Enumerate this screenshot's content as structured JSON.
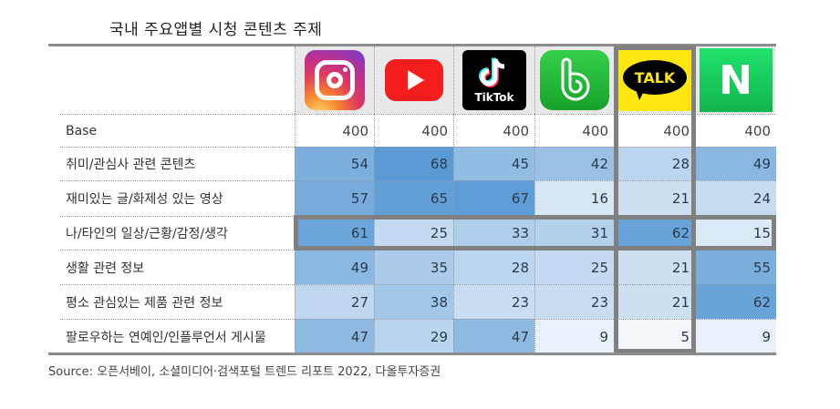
{
  "title": "국내 주요앱별 시청 콘텐츠 주제",
  "source": "Source: 오픈서베이, 소셜미디어·검색포털 트렌드 리포트 2022, 다올투자증권",
  "columns": [
    {
      "app": "Instagram",
      "icon": "instagram-icon"
    },
    {
      "app": "YouTube",
      "icon": "youtube-icon"
    },
    {
      "app": "TikTok",
      "icon": "tiktok-icon",
      "label": "TikTok"
    },
    {
      "app": "Band",
      "icon": "band-icon"
    },
    {
      "app": "KakaoTalk",
      "icon": "kakaotalk-icon",
      "label": "TALK"
    },
    {
      "app": "Naver",
      "icon": "naver-icon",
      "label": "N"
    }
  ],
  "rows": [
    {
      "label": "Base",
      "values": [
        400,
        400,
        400,
        400,
        400,
        400
      ]
    },
    {
      "label": "취미/관심사 관련 콘텐츠",
      "values": [
        54,
        68,
        45,
        42,
        28,
        49
      ]
    },
    {
      "label": "재미있는 글/화제성 있는 영상",
      "values": [
        57,
        65,
        67,
        16,
        21,
        24
      ]
    },
    {
      "label": "나/타인의 일상/근황/감정/생각",
      "values": [
        61,
        25,
        33,
        31,
        62,
        15
      ]
    },
    {
      "label": "생활 관련 정보",
      "values": [
        49,
        35,
        28,
        25,
        21,
        55
      ]
    },
    {
      "label": "평소 관심있는 제품 관련 정보",
      "values": [
        27,
        38,
        23,
        23,
        21,
        62
      ]
    },
    {
      "label": "팔로우하는 연예인/인플루언서 게시물",
      "values": [
        47,
        29,
        47,
        9,
        5,
        9
      ]
    }
  ],
  "highlights": {
    "row": "나/타인의 일상/근황/감정/생각",
    "column": "KakaoTalk",
    "border_color": "#808080"
  },
  "colors": {
    "heat_low": "#f2f6fc",
    "heat_high": "#5b9bd5"
  },
  "chart_data": {
    "type": "table",
    "title": "국내 주요앱별 시청 콘텐츠 주제",
    "columns": [
      "Instagram",
      "YouTube",
      "TikTok",
      "Band",
      "KakaoTalk",
      "Naver"
    ],
    "rows": [
      {
        "name": "Base",
        "values": [
          400,
          400,
          400,
          400,
          400,
          400
        ]
      },
      {
        "name": "취미/관심사 관련 콘텐츠",
        "values": [
          54,
          68,
          45,
          42,
          28,
          49
        ]
      },
      {
        "name": "재미있는 글/화제성 있는 영상",
        "values": [
          57,
          65,
          67,
          16,
          21,
          24
        ]
      },
      {
        "name": "나/타인의 일상/근황/감정/생각",
        "values": [
          61,
          25,
          33,
          31,
          62,
          15
        ]
      },
      {
        "name": "생활 관련 정보",
        "values": [
          49,
          35,
          28,
          25,
          21,
          55
        ]
      },
      {
        "name": "평소 관심있는 제품 관련 정보",
        "values": [
          27,
          38,
          23,
          23,
          21,
          62
        ]
      },
      {
        "name": "팔로우하는 연예인/인플루언서 게시물",
        "values": [
          47,
          29,
          47,
          9,
          5,
          9
        ]
      }
    ],
    "heatmap": true,
    "source": "오픈서베이, 소셜미디어·검색포털 트렌드 리포트 2022, 다올투자증권"
  }
}
